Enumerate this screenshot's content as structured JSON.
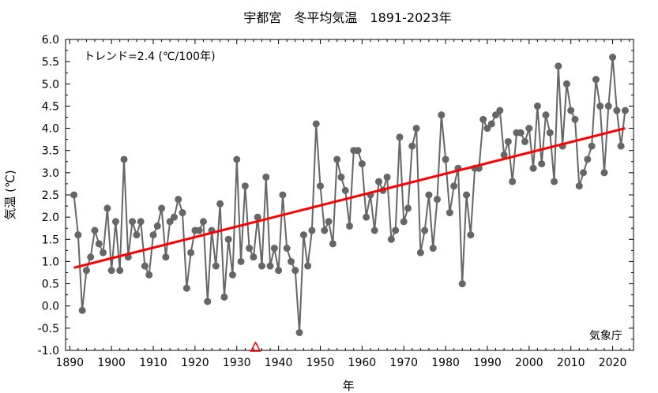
{
  "chart_data": {
    "type": "line",
    "title": "宇都宮　冬平均気温　1891-2023年",
    "xlabel": "年",
    "ylabel": "気温 (℃)",
    "xlim": [
      1889,
      2025
    ],
    "ylim": [
      -1.0,
      6.0
    ],
    "x_ticks": [
      "1890",
      "1900",
      "1910",
      "1920",
      "1930",
      "1940",
      "1950",
      "1960",
      "1970",
      "1980",
      "1990",
      "2000",
      "2010",
      "2020"
    ],
    "y_ticks": [
      "-1.0",
      "-0.5",
      "0.0",
      "0.5",
      "1.0",
      "1.5",
      "2.0",
      "2.5",
      "3.0",
      "3.5",
      "4.0",
      "4.5",
      "5.0",
      "5.5",
      "6.0"
    ],
    "grid": false,
    "trend_label": "トレンド=2.4 (℃/100年)",
    "source_label": "気象庁",
    "series": [
      {
        "color": "#666666",
        "x_start": 1891,
        "values": [
          2.5,
          1.6,
          -0.1,
          0.8,
          1.1,
          1.7,
          1.4,
          1.2,
          2.2,
          0.8,
          1.9,
          0.8,
          3.3,
          1.1,
          1.9,
          1.6,
          1.9,
          0.9,
          0.7,
          1.6,
          1.8,
          2.2,
          1.1,
          1.9,
          2.0,
          2.4,
          2.1,
          0.4,
          1.2,
          1.7,
          1.7,
          1.9,
          0.1,
          1.7,
          0.9,
          2.3,
          0.2,
          1.5,
          0.7,
          3.3,
          1.0,
          2.7,
          1.3,
          1.1,
          2.0,
          0.9,
          2.9,
          0.9,
          1.3,
          0.8,
          2.5,
          1.3,
          1.0,
          0.8,
          -0.6,
          1.6,
          0.9,
          1.7,
          4.1,
          2.7,
          1.7,
          1.9,
          1.4,
          3.3,
          2.9,
          2.6,
          1.8,
          3.5,
          3.5,
          3.2,
          2.0,
          2.5,
          1.7,
          2.8,
          2.6,
          2.9,
          1.5,
          1.7,
          3.8,
          1.9,
          2.2,
          3.6,
          4.0,
          1.2,
          1.7,
          2.5,
          1.3,
          2.4,
          4.3,
          3.3,
          2.1,
          2.7,
          3.1,
          0.5,
          2.5,
          1.6,
          3.1,
          3.1,
          4.2,
          4.0,
          4.1,
          4.3,
          4.4,
          3.4,
          3.7,
          2.8,
          3.9,
          3.9,
          3.7,
          4.0,
          3.1,
          4.5,
          3.2,
          4.3,
          3.9,
          2.8,
          5.4,
          3.6,
          5.0,
          4.4,
          4.2,
          2.7,
          3.0,
          3.3,
          3.6,
          5.1,
          4.5,
          3.0,
          4.5,
          5.6,
          4.4,
          3.6,
          4.4
        ]
      }
    ],
    "trend": {
      "color": "#ff0000",
      "x": [
        1891,
        2023
      ],
      "y": [
        0.86,
        4.0
      ]
    },
    "markers": [
      {
        "type": "triangle",
        "x": 1934.5,
        "y": -1.0,
        "color": "#ff0000"
      }
    ]
  }
}
